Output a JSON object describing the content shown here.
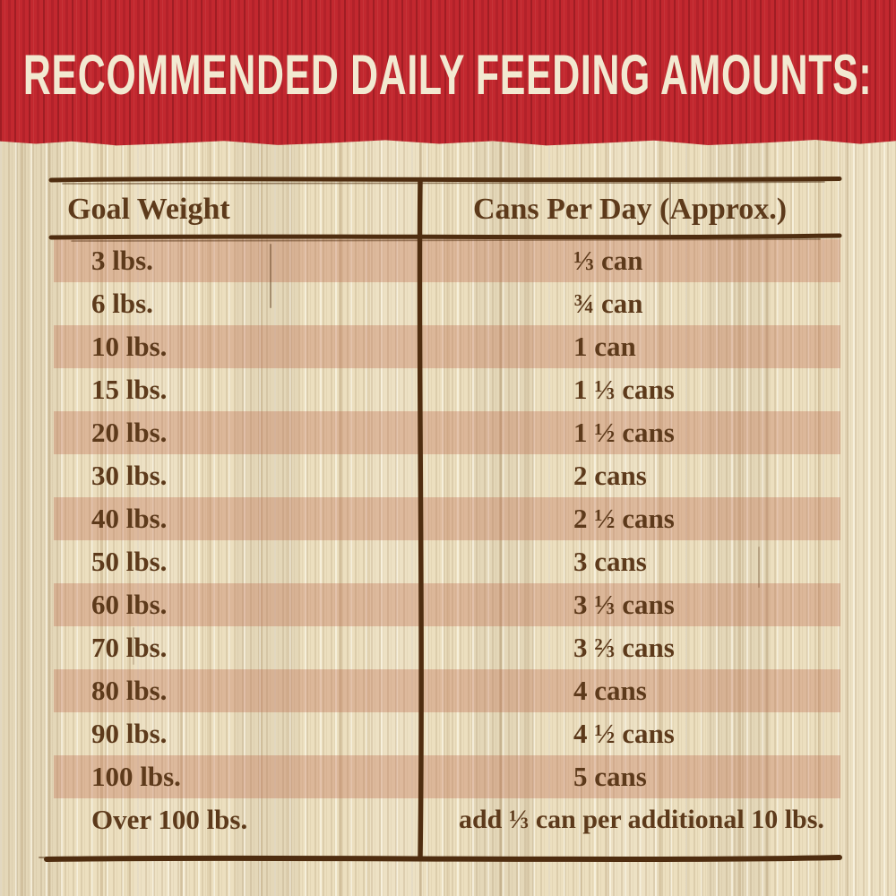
{
  "banner": {
    "title": "RECOMMENDED DAILY FEEDING AMOUNTS:",
    "bg_color": "#c2282f",
    "text_color": "#f2e9d1"
  },
  "table": {
    "columns": [
      "Goal Weight",
      "Cans Per Day (Approx.)"
    ],
    "rows": [
      {
        "weight": "3 lbs.",
        "cans": "⅓ can",
        "shaded": true,
        "wide": false
      },
      {
        "weight": "6 lbs.",
        "cans": "¾ can",
        "shaded": false,
        "wide": false
      },
      {
        "weight": "10 lbs.",
        "cans": "1 can",
        "shaded": true,
        "wide": false
      },
      {
        "weight": "15 lbs.",
        "cans": "1 ⅓ cans",
        "shaded": false,
        "wide": false
      },
      {
        "weight": "20 lbs.",
        "cans": "1 ½ cans",
        "shaded": true,
        "wide": false
      },
      {
        "weight": "30 lbs.",
        "cans": "2 cans",
        "shaded": false,
        "wide": false
      },
      {
        "weight": "40 lbs.",
        "cans": "2 ½ cans",
        "shaded": true,
        "wide": false
      },
      {
        "weight": "50 lbs.",
        "cans": "3 cans",
        "shaded": false,
        "wide": false
      },
      {
        "weight": "60 lbs.",
        "cans": "3 ⅓ cans",
        "shaded": true,
        "wide": false
      },
      {
        "weight": "70 lbs.",
        "cans": "3 ⅔ cans",
        "shaded": false,
        "wide": false
      },
      {
        "weight": "80 lbs.",
        "cans": "4 cans",
        "shaded": true,
        "wide": false
      },
      {
        "weight": "90 lbs.",
        "cans": "4 ½ cans",
        "shaded": false,
        "wide": false
      },
      {
        "weight": "100 lbs.",
        "cans": "5 cans",
        "shaded": true,
        "wide": false
      },
      {
        "weight": "Over 100 lbs.",
        "cans": "add ⅓ can per additional 10 lbs.",
        "shaded": false,
        "wide": true
      }
    ],
    "colors": {
      "text": "#5d3a1b",
      "line": "#4f2d10",
      "row_shade": "rgba(188,102,76,0.33)",
      "wood_base": "#ecdfbf"
    }
  },
  "chart_data": {
    "type": "table",
    "title": "RECOMMENDED DAILY FEEDING AMOUNTS:",
    "columns": [
      "Goal Weight",
      "Cans Per Day (Approx.)"
    ],
    "rows": [
      [
        "3 lbs.",
        "⅓ can"
      ],
      [
        "6 lbs.",
        "¾ can"
      ],
      [
        "10 lbs.",
        "1 can"
      ],
      [
        "15 lbs.",
        "1 ⅓ cans"
      ],
      [
        "20 lbs.",
        "1 ½ cans"
      ],
      [
        "30 lbs.",
        "2 cans"
      ],
      [
        "40 lbs.",
        "2 ½ cans"
      ],
      [
        "50 lbs.",
        "3 cans"
      ],
      [
        "60 lbs.",
        "3 ⅓ cans"
      ],
      [
        "70 lbs.",
        "3 ⅔ cans"
      ],
      [
        "80 lbs.",
        "4 cans"
      ],
      [
        "90 lbs.",
        "4 ½ cans"
      ],
      [
        "100 lbs.",
        "5 cans"
      ],
      [
        "Over 100 lbs.",
        "add ⅓ can per additional 10 lbs."
      ]
    ],
    "layout_hints": {
      "striped_rows": "odd rows shaded",
      "header_divider": true
    }
  }
}
